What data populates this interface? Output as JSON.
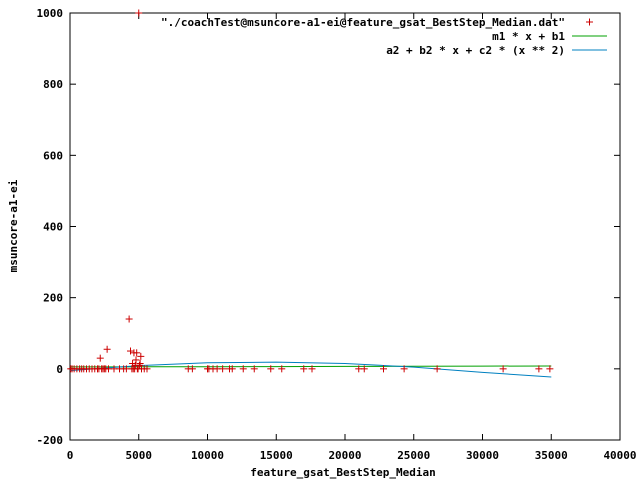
{
  "chart_data": {
    "type": "scatter",
    "title": "",
    "xlabel": "feature_gsat_BestStep_Median",
    "ylabel": "msuncore-a1-ei",
    "xlim": [
      0,
      40000
    ],
    "ylim": [
      -200,
      1000
    ],
    "x_ticks": [
      0,
      5000,
      10000,
      15000,
      20000,
      25000,
      30000,
      35000,
      40000
    ],
    "y_ticks": [
      -200,
      0,
      200,
      400,
      600,
      800,
      1000
    ],
    "x_tick_labels": [
      "0",
      "5000",
      "10000",
      "15000",
      "20000",
      "25000",
      "30000",
      "35000",
      "40000"
    ],
    "y_tick_labels": [
      "-200",
      "0",
      "200",
      "400",
      "600",
      "800",
      "1000"
    ],
    "grid": false,
    "legend_position": "top-right",
    "colors": {
      "points": "#cc0000",
      "linear_fit": "#00a000",
      "quadratic_fit": "#0080c0",
      "frame": "#000000"
    },
    "series": [
      {
        "name": "\"./coachTest@msuncore-a1-ei@feature_gsat_BestStep_Median.dat\"",
        "kind": "points",
        "points": [
          [
            50,
            0
          ],
          [
            150,
            0
          ],
          [
            300,
            0
          ],
          [
            500,
            0
          ],
          [
            700,
            0
          ],
          [
            850,
            0
          ],
          [
            1000,
            0
          ],
          [
            1200,
            0
          ],
          [
            1400,
            0
          ],
          [
            1600,
            0
          ],
          [
            1800,
            0
          ],
          [
            2000,
            0
          ],
          [
            2100,
            0
          ],
          [
            2200,
            30
          ],
          [
            2300,
            0
          ],
          [
            2400,
            0
          ],
          [
            2500,
            0
          ],
          [
            2600,
            0
          ],
          [
            2700,
            55
          ],
          [
            2800,
            0
          ],
          [
            3200,
            0
          ],
          [
            3600,
            0
          ],
          [
            3900,
            0
          ],
          [
            4100,
            0
          ],
          [
            4300,
            140
          ],
          [
            4400,
            50
          ],
          [
            4500,
            0
          ],
          [
            4550,
            15
          ],
          [
            4600,
            0
          ],
          [
            4650,
            45
          ],
          [
            4700,
            0
          ],
          [
            4750,
            10
          ],
          [
            4800,
            25
          ],
          [
            4850,
            45
          ],
          [
            4900,
            0
          ],
          [
            4950,
            0
          ],
          [
            5000,
            1000
          ],
          [
            5050,
            10
          ],
          [
            5100,
            15
          ],
          [
            5150,
            35
          ],
          [
            5200,
            0
          ],
          [
            5400,
            0
          ],
          [
            5600,
            0
          ],
          [
            8600,
            0
          ],
          [
            8900,
            0
          ],
          [
            10000,
            0
          ],
          [
            10100,
            0
          ],
          [
            10400,
            0
          ],
          [
            10700,
            0
          ],
          [
            11100,
            0
          ],
          [
            11600,
            0
          ],
          [
            11800,
            0
          ],
          [
            12600,
            0
          ],
          [
            13400,
            0
          ],
          [
            14600,
            0
          ],
          [
            15400,
            0
          ],
          [
            17000,
            0
          ],
          [
            17600,
            0
          ],
          [
            21000,
            0
          ],
          [
            21400,
            0
          ],
          [
            22800,
            0
          ],
          [
            24300,
            0
          ],
          [
            26700,
            0
          ],
          [
            31500,
            0
          ],
          [
            34100,
            0
          ],
          [
            34900,
            0
          ]
        ]
      },
      {
        "name": "m1 * x + b1",
        "kind": "line",
        "x": [
          0,
          5000,
          10000,
          15000,
          20000,
          25000,
          30000,
          35000
        ],
        "y": [
          5.3,
          5.6,
          6.0,
          6.4,
          6.8,
          7.2,
          7.6,
          8.0
        ]
      },
      {
        "name": "a2 + b2 * x + c2 * (x ** 2)",
        "kind": "line",
        "x": [
          0,
          5000,
          10000,
          15000,
          20000,
          25000,
          30000,
          35000
        ],
        "y": [
          -5,
          9,
          17,
          19,
          15,
          5,
          -10,
          -23
        ]
      }
    ]
  }
}
